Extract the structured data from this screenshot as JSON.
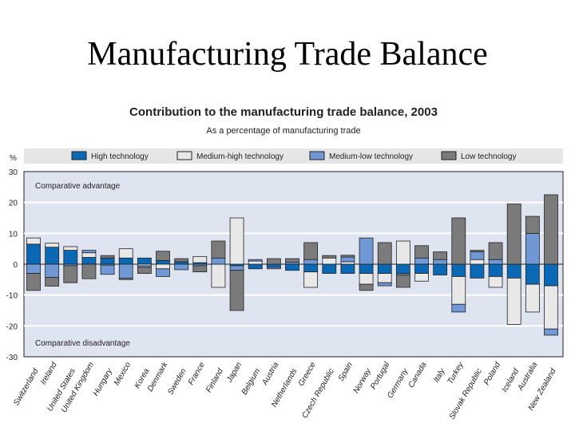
{
  "slide": {
    "title": "Manufacturing Trade Balance"
  },
  "chart_data": {
    "type": "bar",
    "stacked": true,
    "title": "Contribution to the manufacturing trade balance, 2003",
    "subtitle": "As a percentage of manufacturing trade",
    "ylabel": "%",
    "ylim": [
      -30,
      30
    ],
    "yticks": [
      30,
      20,
      10,
      0,
      -10,
      -20,
      -30
    ],
    "grid": true,
    "legend_placement": "top",
    "annotations": {
      "top": "Comparative advantage",
      "bottom": "Comparative disadvantage"
    },
    "categories": [
      "Switzerland",
      "Ireland",
      "United States",
      "United Kingdom",
      "Hungary",
      "Mexico",
      "Korea",
      "Denmark",
      "Sweden",
      "France",
      "Finland",
      "Japan",
      "Belgium",
      "Austria",
      "Netherlands",
      "Greece",
      "Czech Republic",
      "Spain",
      "Norway",
      "Portugal",
      "Germany",
      "Canada",
      "Italy",
      "Turkey",
      "Slovak Republic",
      "Poland",
      "Iceland",
      "Australia",
      "New Zealand"
    ],
    "series": [
      {
        "name": "High technology",
        "color": "#0a68b4",
        "values": [
          6.5,
          5.5,
          4.5,
          2.2,
          2,
          2,
          2,
          1.2,
          0.8,
          0.5,
          0,
          -0.5,
          -1.5,
          -1,
          -2,
          -2.5,
          -3,
          -3,
          -3,
          -3,
          -3,
          -3,
          -3.5,
          -4,
          -4.5,
          -4,
          -4.5,
          -6.5,
          -7
        ]
      },
      {
        "name": "Medium-high technology",
        "color": "#e8e8e8",
        "values": [
          2,
          1.3,
          1.2,
          1.5,
          -0.3,
          3,
          -0.5,
          -1.5,
          0,
          2,
          -7.5,
          15,
          1,
          0,
          0,
          -5,
          2,
          0.8,
          -3.5,
          -3,
          7.5,
          -2.5,
          0,
          -9,
          1.5,
          -3.5,
          -15,
          -9,
          -14
        ]
      },
      {
        "name": "Medium-low technology",
        "color": "#6f98d4",
        "values": [
          -3,
          -4.3,
          -0.5,
          0.8,
          -3,
          -4.5,
          -0.5,
          -2.5,
          -1.8,
          -0.5,
          2,
          -1.5,
          0.5,
          -0.5,
          0.6,
          1.5,
          0,
          1.5,
          8.5,
          -1,
          -0.5,
          2,
          1.5,
          -2.5,
          2.5,
          1.5,
          0,
          10,
          -2
        ]
      },
      {
        "name": "Low technology",
        "color": "#7b7b7b",
        "values": [
          -5.5,
          -2.8,
          -5.5,
          -4.7,
          0.8,
          -0.5,
          -2,
          3,
          1,
          -2,
          5.5,
          -13,
          0,
          1.8,
          1.2,
          5.5,
          0.8,
          0.6,
          -2,
          7,
          -4,
          4,
          2.5,
          15,
          0.5,
          5.5,
          19.5,
          5.5,
          22.5
        ]
      }
    ]
  }
}
